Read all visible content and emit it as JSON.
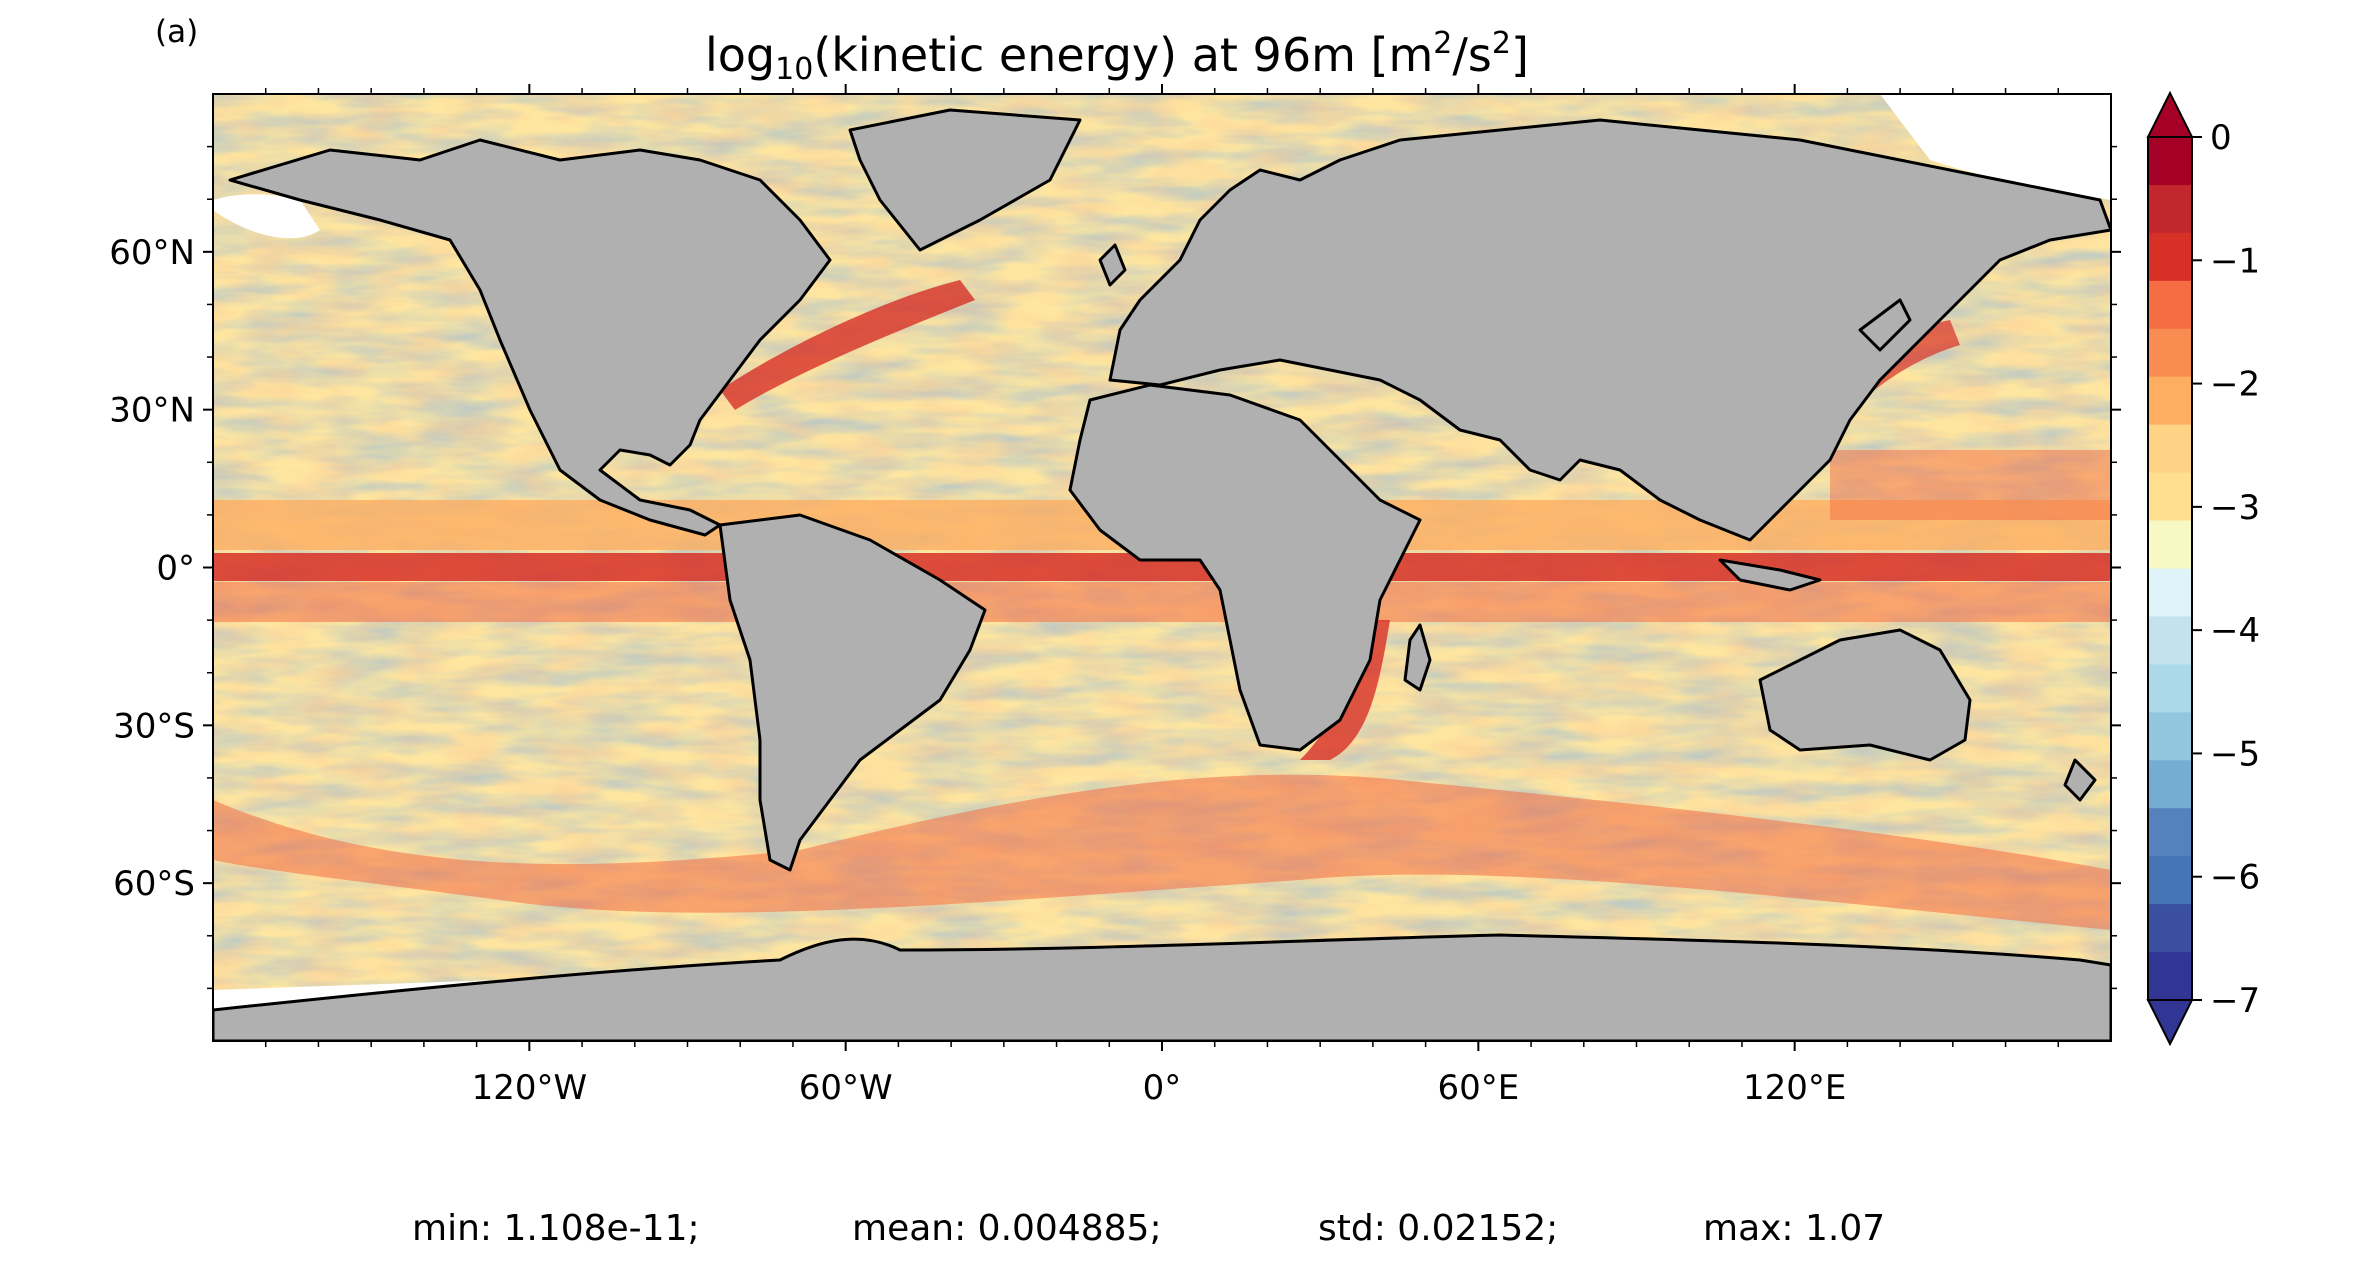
{
  "panel_label": "(a)",
  "title": {
    "prefix": "log",
    "log_base": "10",
    "middle": "(kinetic energy) at 96m [m",
    "exp1": "2",
    "sep": "/s",
    "exp2": "2",
    "suffix": "]"
  },
  "axes": {
    "lat_ticks": [
      "60°N",
      "30°N",
      "0°",
      "30°S",
      "60°S"
    ],
    "lon_ticks": [
      "120°W",
      "60°W",
      "0°",
      "60°E",
      "120°E"
    ]
  },
  "colorbar": {
    "tick_labels": [
      "0",
      "−1",
      "−2",
      "−3",
      "−4",
      "−5",
      "−6",
      "−7"
    ],
    "colors": [
      "#a50026",
      "#c1272d",
      "#d73027",
      "#f46d43",
      "#f88c51",
      "#fdae61",
      "#fed385",
      "#fee090",
      "#f8f8c5",
      "#e0f3f8",
      "#c4e1ee",
      "#abd9e9",
      "#92c5de",
      "#74add1",
      "#5582bd",
      "#4575b4",
      "#3a4fa0",
      "#313695"
    ]
  },
  "stats": {
    "min": "min: 1.108e-11;",
    "mean": "mean: 0.004885;",
    "std": "std: 0.02152;",
    "max": "max: 1.07"
  },
  "map_colors": {
    "land": "#b0b0b0",
    "ice": "#ffffff",
    "coast": "#000000",
    "ocean_base": "#fee6a0"
  }
}
